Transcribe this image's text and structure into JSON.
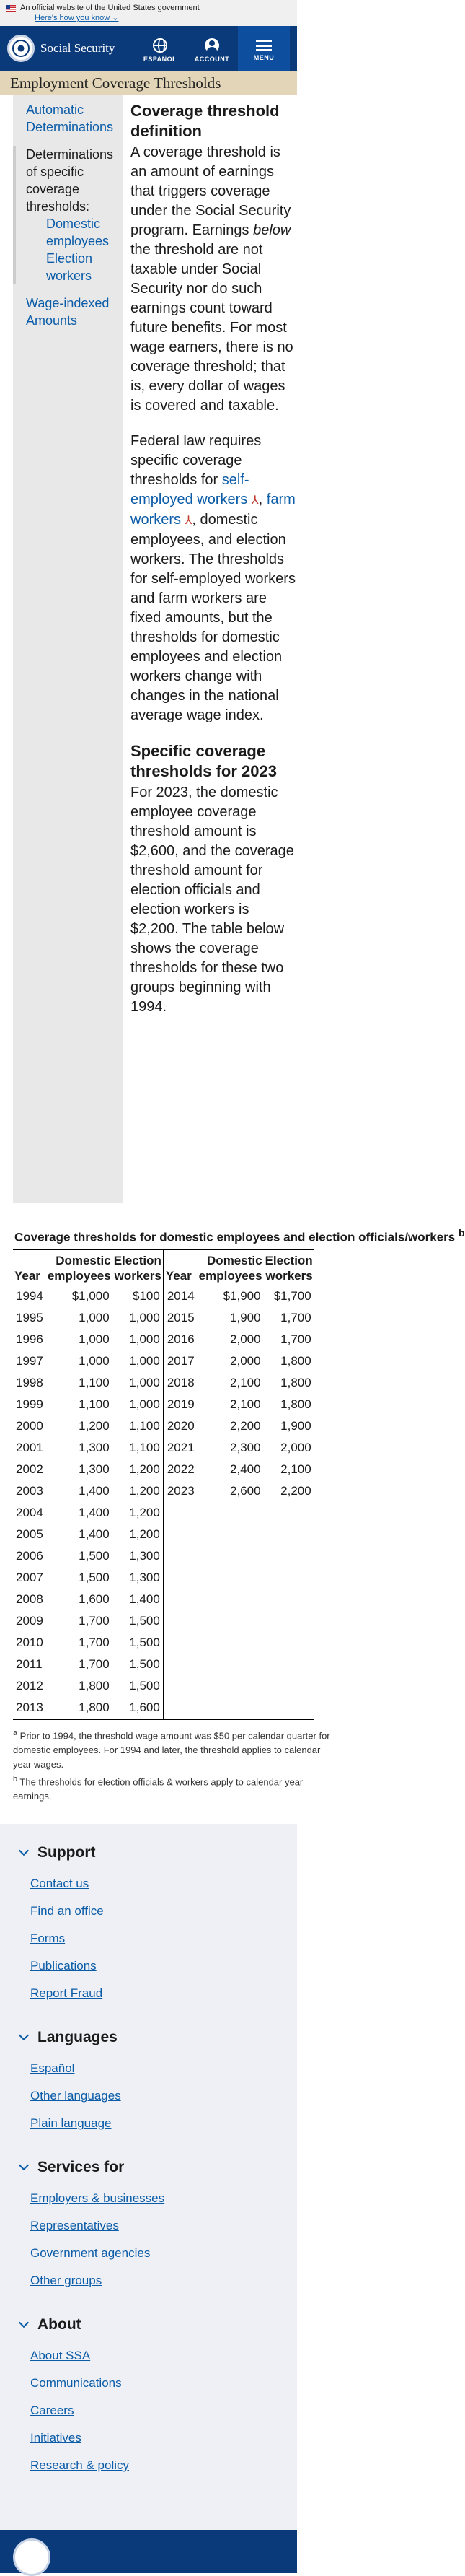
{
  "banner": {
    "text": "An official website of the United States government",
    "link": "Here's how you know"
  },
  "header": {
    "brand": "Social Security",
    "buttons": [
      "ESPAÑOL",
      "ACCOUNT",
      "MENU"
    ]
  },
  "page_title": "Employment Coverage Thresholds",
  "sidenav": {
    "item1": "Automatic Determinations",
    "item2": "Determinations of specific coverage thresholds:",
    "sub1": "Domestic employees",
    "sub2": "Election workers",
    "item3": "Wage-indexed Amounts"
  },
  "article": {
    "h1": "Coverage threshold definition",
    "p1a": "A coverage threshold is an amount of earnings that triggers coverage under the Social Security program. Earnings ",
    "p1em": "below",
    "p1b": " the threshold are not taxable under Social Security nor do such earnings count toward future benefits. For most wage earners, there is no coverage threshold; that is, every dollar of wages is covered and taxable.",
    "p2a": "Federal law requires specific coverage thresholds for ",
    "p2link1": "self-employed workers",
    "p2link2": "farm workers",
    "p2b": ", domestic employees, and election workers. The thresholds for self-employed workers and farm workers are fixed amounts, but the thresholds for domestic employees and election workers change with changes in the national average wage index.",
    "h2": "Specific coverage thresholds for 2023",
    "p3": "For 2023, the domestic employee coverage threshold amount is $2,600, and the coverage threshold amount for election officials and election workers is $2,200. The table below shows the coverage thresholds for these two groups beginning with 1994."
  },
  "table": {
    "caption": "Coverage thresholds for domestic employees and election officials/workers",
    "caption_sup": "b",
    "headers": {
      "year": "Year",
      "domestic": "Domestic employees",
      "election": "Election workers"
    },
    "left": [
      [
        "1994",
        "$1,000",
        "$100"
      ],
      [
        "1995",
        "1,000",
        "1,000"
      ],
      [
        "1996",
        "1,000",
        "1,000"
      ],
      [
        "1997",
        "1,000",
        "1,000"
      ],
      [
        "1998",
        "1,100",
        "1,000"
      ],
      [
        "1999",
        "1,100",
        "1,000"
      ],
      [
        "2000",
        "1,200",
        "1,100"
      ],
      [
        "2001",
        "1,300",
        "1,100"
      ],
      [
        "2002",
        "1,300",
        "1,200"
      ],
      [
        "2003",
        "1,400",
        "1,200"
      ],
      [
        "2004",
        "1,400",
        "1,200"
      ],
      [
        "2005",
        "1,400",
        "1,200"
      ],
      [
        "2006",
        "1,500",
        "1,300"
      ],
      [
        "2007",
        "1,500",
        "1,300"
      ],
      [
        "2008",
        "1,600",
        "1,400"
      ],
      [
        "2009",
        "1,700",
        "1,500"
      ],
      [
        "2010",
        "1,700",
        "1,500"
      ],
      [
        "2011",
        "1,700",
        "1,500"
      ],
      [
        "2012",
        "1,800",
        "1,500"
      ],
      [
        "2013",
        "1,800",
        "1,600"
      ]
    ],
    "right": [
      [
        "2014",
        "$1,900",
        "$1,700"
      ],
      [
        "2015",
        "1,900",
        "1,700"
      ],
      [
        "2016",
        "2,000",
        "1,700"
      ],
      [
        "2017",
        "2,000",
        "1,800"
      ],
      [
        "2018",
        "2,100",
        "1,800"
      ],
      [
        "2019",
        "2,100",
        "1,800"
      ],
      [
        "2020",
        "2,200",
        "1,900"
      ],
      [
        "2021",
        "2,300",
        "2,000"
      ],
      [
        "2022",
        "2,400",
        "2,100"
      ],
      [
        "2023",
        "2,600",
        "2,200"
      ]
    ]
  },
  "footnotes": {
    "a_sup": "a",
    "a": "Prior to 1994, the threshold wage amount was $50 per calendar quarter for domestic employees. For 1994 and later, the threshold applies to calendar year wages.",
    "b_sup": "b",
    "b": "The thresholds for election officials & workers apply to calendar year earnings."
  },
  "footer": {
    "sections": [
      {
        "title": "Support",
        "links": [
          "Contact us",
          "Find an office",
          "Forms",
          "Publications",
          "Report Fraud"
        ]
      },
      {
        "title": "Languages",
        "links": [
          "Español",
          "Other languages",
          "Plain language"
        ]
      },
      {
        "title": "Services for",
        "links": [
          "Employers & businesses",
          "Representatives",
          "Government agencies",
          "Other groups"
        ]
      },
      {
        "title": "About",
        "links": [
          "About SSA",
          "Communications",
          "Careers",
          "Initiatives",
          "Research & policy"
        ]
      }
    ]
  },
  "colors": {
    "header_bg": "#0b3a7a",
    "title_bar_bg": "#e3d6b8",
    "link": "#0b5ca8",
    "sidenav_bg": "#e8e8e8"
  }
}
